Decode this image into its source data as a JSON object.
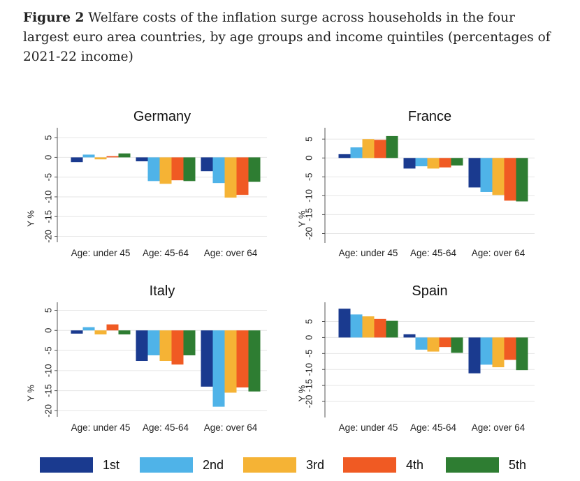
{
  "caption": {
    "label": "Figure 2",
    "text": " Welfare costs of the inflation surge across households in the four largest euro area countries, by age groups and income quintiles (percentages of 2021-22 income)"
  },
  "colors": [
    "#1a3a8f",
    "#4fb3e8",
    "#f5b335",
    "#f05a23",
    "#2e7d32"
  ],
  "legend": [
    "1st",
    "2nd",
    "3rd",
    "4th",
    "5th"
  ],
  "chart_data": [
    {
      "type": "bar",
      "title": "Germany",
      "ylabel": "Y %",
      "categories": [
        "Age: under 45",
        "Age: 45-64",
        "Age: over 64"
      ],
      "yticks": [
        5,
        0,
        -5,
        -10,
        -15,
        -20
      ],
      "ylim": [
        -21.5,
        7.5
      ],
      "series": [
        {
          "name": "1st",
          "values": [
            -1.2,
            -1.0,
            -3.5
          ]
        },
        {
          "name": "2nd",
          "values": [
            0.7,
            -6.0,
            -6.5
          ]
        },
        {
          "name": "3rd",
          "values": [
            -0.5,
            -6.7,
            -10.2
          ]
        },
        {
          "name": "4th",
          "values": [
            0.3,
            -5.8,
            -9.5
          ]
        },
        {
          "name": "5th",
          "values": [
            1.0,
            -6.0,
            -6.2
          ]
        }
      ]
    },
    {
      "type": "bar",
      "title": "France",
      "ylabel": "Y %",
      "categories": [
        "Age: under 45",
        "Age: 45-64",
        "Age: over 64"
      ],
      "yticks": [
        5,
        0,
        -5,
        -10,
        -15,
        -20
      ],
      "ylim": [
        -22.5,
        8.0
      ],
      "series": [
        {
          "name": "1st",
          "values": [
            1.0,
            -2.8,
            -7.8
          ]
        },
        {
          "name": "2nd",
          "values": [
            2.8,
            -2.2,
            -9.0
          ]
        },
        {
          "name": "3rd",
          "values": [
            5.0,
            -2.8,
            -9.8
          ]
        },
        {
          "name": "4th",
          "values": [
            4.8,
            -2.5,
            -11.3
          ]
        },
        {
          "name": "5th",
          "values": [
            5.8,
            -2.0,
            -11.5
          ]
        }
      ]
    },
    {
      "type": "bar",
      "title": "Italy",
      "ylabel": "Y %",
      "categories": [
        "Age: under 45",
        "Age: 45-64",
        "Age: over 64"
      ],
      "yticks": [
        5,
        0,
        -5,
        -10,
        -15,
        -20
      ],
      "ylim": [
        -21.5,
        7.0
      ],
      "series": [
        {
          "name": "1st",
          "values": [
            -0.8,
            -7.6,
            -14.0
          ]
        },
        {
          "name": "2nd",
          "values": [
            0.8,
            -6.2,
            -19.0
          ]
        },
        {
          "name": "3rd",
          "values": [
            -1.0,
            -7.6,
            -15.5
          ]
        },
        {
          "name": "4th",
          "values": [
            1.5,
            -8.5,
            -14.2
          ]
        },
        {
          "name": "5th",
          "values": [
            -1.0,
            -6.2,
            -15.2
          ]
        }
      ]
    },
    {
      "type": "bar",
      "title": "Spain",
      "ylabel": "Y %",
      "categories": [
        "Age: under 45",
        "Age: 45-64",
        "Age: over 64"
      ],
      "yticks": [
        5,
        0,
        -5,
        -10,
        -15,
        -20
      ],
      "ylim": [
        -25.0,
        11.0
      ],
      "series": [
        {
          "name": "1st",
          "values": [
            9.0,
            1.0,
            -11.2
          ]
        },
        {
          "name": "2nd",
          "values": [
            7.2,
            -3.8,
            -8.5
          ]
        },
        {
          "name": "3rd",
          "values": [
            6.6,
            -4.4,
            -9.3
          ]
        },
        {
          "name": "4th",
          "values": [
            5.8,
            -3.0,
            -7.0
          ]
        },
        {
          "name": "5th",
          "values": [
            5.2,
            -4.8,
            -10.2
          ]
        }
      ]
    }
  ]
}
